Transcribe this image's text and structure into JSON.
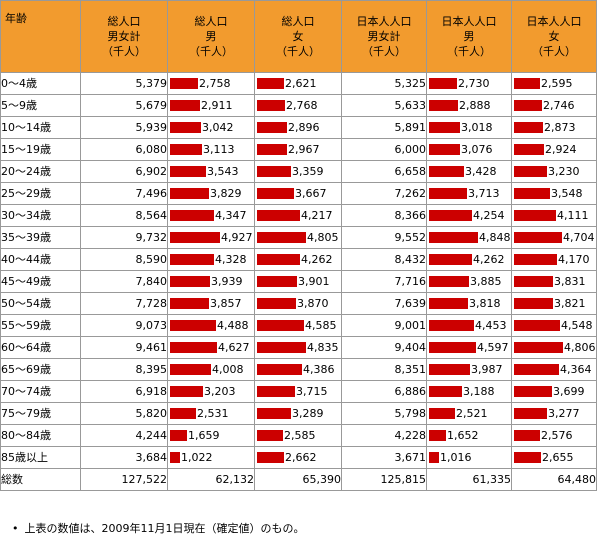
{
  "headers": [
    [
      "年齢"
    ],
    [
      "総人口",
      "男女計",
      "（千人）"
    ],
    [
      "総人口",
      "男",
      "（千人）"
    ],
    [
      "総人口",
      "女",
      "（千人）"
    ],
    [
      "日本人人口",
      "男女計",
      "（千人）"
    ],
    [
      "日本人人口",
      "男",
      "（千人）"
    ],
    [
      "日本人人口",
      "女",
      "（千人）"
    ]
  ],
  "rows": [
    {
      "age": "0～4歳",
      "total": "5,379",
      "male": 2758,
      "male_label": "2,758",
      "female": 2621,
      "female_label": "2,621",
      "jp_total": "5,325",
      "jp_male": 2730,
      "jp_male_label": "2,730",
      "jp_female": 2595,
      "jp_female_label": "2,595"
    },
    {
      "age": "5～9歳",
      "total": "5,679",
      "male": 2911,
      "male_label": "2,911",
      "female": 2768,
      "female_label": "2,768",
      "jp_total": "5,633",
      "jp_male": 2888,
      "jp_male_label": "2,888",
      "jp_female": 2746,
      "jp_female_label": "2,746"
    },
    {
      "age": "10～14歳",
      "total": "5,939",
      "male": 3042,
      "male_label": "3,042",
      "female": 2896,
      "female_label": "2,896",
      "jp_total": "5,891",
      "jp_male": 3018,
      "jp_male_label": "3,018",
      "jp_female": 2873,
      "jp_female_label": "2,873"
    },
    {
      "age": "15～19歳",
      "total": "6,080",
      "male": 3113,
      "male_label": "3,113",
      "female": 2967,
      "female_label": "2,967",
      "jp_total": "6,000",
      "jp_male": 3076,
      "jp_male_label": "3,076",
      "jp_female": 2924,
      "jp_female_label": "2,924"
    },
    {
      "age": "20～24歳",
      "total": "6,902",
      "male": 3543,
      "male_label": "3,543",
      "female": 3359,
      "female_label": "3,359",
      "jp_total": "6,658",
      "jp_male": 3428,
      "jp_male_label": "3,428",
      "jp_female": 3230,
      "jp_female_label": "3,230"
    },
    {
      "age": "25～29歳",
      "total": "7,496",
      "male": 3829,
      "male_label": "3,829",
      "female": 3667,
      "female_label": "3,667",
      "jp_total": "7,262",
      "jp_male": 3713,
      "jp_male_label": "3,713",
      "jp_female": 3548,
      "jp_female_label": "3,548"
    },
    {
      "age": "30～34歳",
      "total": "8,564",
      "male": 4347,
      "male_label": "4,347",
      "female": 4217,
      "female_label": "4,217",
      "jp_total": "8,366",
      "jp_male": 4254,
      "jp_male_label": "4,254",
      "jp_female": 4111,
      "jp_female_label": "4,111"
    },
    {
      "age": "35～39歳",
      "total": "9,732",
      "male": 4927,
      "male_label": "4,927",
      "female": 4805,
      "female_label": "4,805",
      "jp_total": "9,552",
      "jp_male": 4848,
      "jp_male_label": "4,848",
      "jp_female": 4704,
      "jp_female_label": "4,704"
    },
    {
      "age": "40～44歳",
      "total": "8,590",
      "male": 4328,
      "male_label": "4,328",
      "female": 4262,
      "female_label": "4,262",
      "jp_total": "8,432",
      "jp_male": 4262,
      "jp_male_label": "4,262",
      "jp_female": 4170,
      "jp_female_label": "4,170"
    },
    {
      "age": "45～49歳",
      "total": "7,840",
      "male": 3939,
      "male_label": "3,939",
      "female": 3901,
      "female_label": "3,901",
      "jp_total": "7,716",
      "jp_male": 3885,
      "jp_male_label": "3,885",
      "jp_female": 3831,
      "jp_female_label": "3,831"
    },
    {
      "age": "50～54歳",
      "total": "7,728",
      "male": 3857,
      "male_label": "3,857",
      "female": 3870,
      "female_label": "3,870",
      "jp_total": "7,639",
      "jp_male": 3818,
      "jp_male_label": "3,818",
      "jp_female": 3821,
      "jp_female_label": "3,821"
    },
    {
      "age": "55～59歳",
      "total": "9,073",
      "male": 4488,
      "male_label": "4,488",
      "female": 4585,
      "female_label": "4,585",
      "jp_total": "9,001",
      "jp_male": 4453,
      "jp_male_label": "4,453",
      "jp_female": 4548,
      "jp_female_label": "4,548"
    },
    {
      "age": "60～64歳",
      "total": "9,461",
      "male": 4627,
      "male_label": "4,627",
      "female": 4835,
      "female_label": "4,835",
      "jp_total": "9,404",
      "jp_male": 4597,
      "jp_male_label": "4,597",
      "jp_female": 4806,
      "jp_female_label": "4,806"
    },
    {
      "age": "65～69歳",
      "total": "8,395",
      "male": 4008,
      "male_label": "4,008",
      "female": 4386,
      "female_label": "4,386",
      "jp_total": "8,351",
      "jp_male": 3987,
      "jp_male_label": "3,987",
      "jp_female": 4364,
      "jp_female_label": "4,364"
    },
    {
      "age": "70～74歳",
      "total": "6,918",
      "male": 3203,
      "male_label": "3,203",
      "female": 3715,
      "female_label": "3,715",
      "jp_total": "6,886",
      "jp_male": 3188,
      "jp_male_label": "3,188",
      "jp_female": 3699,
      "jp_female_label": "3,699"
    },
    {
      "age": "75～79歳",
      "total": "5,820",
      "male": 2531,
      "male_label": "2,531",
      "female": 3289,
      "female_label": "3,289",
      "jp_total": "5,798",
      "jp_male": 2521,
      "jp_male_label": "2,521",
      "jp_female": 3277,
      "jp_female_label": "3,277"
    },
    {
      "age": "80～84歳",
      "total": "4,244",
      "male": 1659,
      "male_label": "1,659",
      "female": 2585,
      "female_label": "2,585",
      "jp_total": "4,228",
      "jp_male": 1652,
      "jp_male_label": "1,652",
      "jp_female": 2576,
      "jp_female_label": "2,576"
    },
    {
      "age": "85歳以上",
      "total": "3,684",
      "male": 1022,
      "male_label": "1,022",
      "female": 2662,
      "female_label": "2,662",
      "jp_total": "3,671",
      "jp_male": 1016,
      "jp_male_label": "1,016",
      "jp_female": 2655,
      "jp_female_label": "2,655"
    }
  ],
  "totals": {
    "label": "総数",
    "values": [
      "127,522",
      "62,132",
      "65,390",
      "125,815",
      "61,335",
      "64,480"
    ]
  },
  "footnote": "上表の数値は、2009年11月1日現在（確定値）のもの。",
  "colors": {
    "header_bg": "#f29b2e",
    "bar": "#cc0000",
    "border": "#999999"
  }
}
